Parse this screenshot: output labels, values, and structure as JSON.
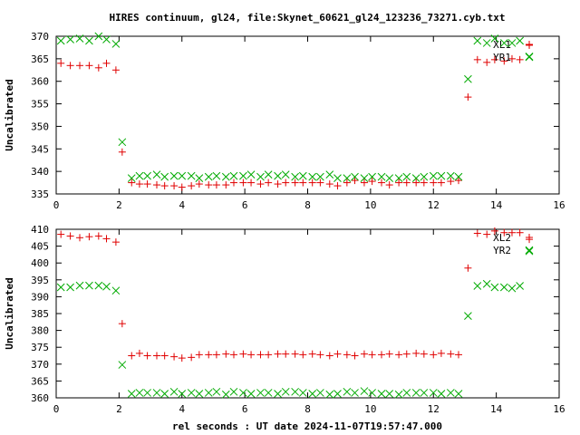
{
  "window": {
    "title": "HIRES continuum, gl24, file:Skynet_60621_gl24_123236_73271.cyb.txt"
  },
  "colors": {
    "red": "#e00000",
    "green": "#00aa00",
    "axis": "#000000"
  },
  "chart_data": [
    {
      "type": "scatter",
      "title": "HIRES continuum, gl24, file:Skynet_60621_gl24_123236_73271.cyb.txt",
      "xlabel": "",
      "ylabel": "Uncalibrated",
      "xlim": [
        0,
        16
      ],
      "ylim": [
        335,
        370
      ],
      "xticks": [
        0,
        2,
        4,
        6,
        8,
        10,
        12,
        14,
        16
      ],
      "yticks": [
        335,
        340,
        345,
        350,
        355,
        360,
        365,
        370
      ],
      "legend_position": "top-right",
      "series": [
        {
          "name": "XL1",
          "marker": "plus",
          "color": "#e00000",
          "x": [
            0.15,
            0.45,
            0.75,
            1.05,
            1.35,
            1.6,
            1.9,
            2.1,
            2.4,
            2.65,
            2.9,
            3.2,
            3.45,
            3.75,
            4.0,
            4.3,
            4.55,
            4.85,
            5.1,
            5.4,
            5.65,
            5.95,
            6.2,
            6.5,
            6.75,
            7.05,
            7.3,
            7.6,
            7.85,
            8.15,
            8.4,
            8.7,
            8.95,
            9.25,
            9.5,
            9.8,
            10.05,
            10.35,
            10.6,
            10.9,
            11.15,
            11.45,
            11.7,
            12.0,
            12.25,
            12.55,
            12.8,
            13.1,
            13.4,
            13.7,
            13.95,
            14.25,
            14.5,
            14.75,
            15.05
          ],
          "y": [
            364.0,
            363.5,
            363.5,
            363.5,
            363.0,
            364.0,
            362.5,
            344.3,
            337.5,
            337.2,
            337.2,
            337.0,
            336.8,
            336.8,
            336.5,
            336.8,
            337.2,
            337.0,
            337.0,
            337.0,
            337.5,
            337.5,
            337.5,
            337.2,
            337.5,
            337.2,
            337.5,
            337.5,
            337.5,
            337.5,
            337.5,
            337.2,
            336.8,
            337.5,
            338.0,
            337.5,
            337.8,
            337.5,
            337.0,
            337.5,
            337.5,
            337.5,
            337.5,
            337.5,
            337.5,
            337.8,
            338.0,
            356.5,
            364.8,
            364.2,
            364.8,
            364.5,
            365.0,
            364.8,
            368.0
          ]
        },
        {
          "name": "YR1",
          "marker": "cross",
          "color": "#00aa00",
          "x": [
            0.15,
            0.45,
            0.75,
            1.05,
            1.35,
            1.6,
            1.9,
            2.1,
            2.4,
            2.65,
            2.9,
            3.2,
            3.45,
            3.75,
            4.0,
            4.3,
            4.55,
            4.85,
            5.1,
            5.4,
            5.65,
            5.95,
            6.2,
            6.5,
            6.75,
            7.05,
            7.3,
            7.6,
            7.85,
            8.15,
            8.4,
            8.7,
            8.95,
            9.25,
            9.5,
            9.8,
            10.05,
            10.35,
            10.6,
            10.9,
            11.15,
            11.45,
            11.7,
            12.0,
            12.25,
            12.55,
            12.8,
            13.1,
            13.4,
            13.7,
            13.95,
            14.25,
            14.5,
            14.75,
            15.05
          ],
          "y": [
            369.0,
            369.3,
            369.5,
            369.0,
            370.0,
            369.3,
            368.3,
            346.5,
            338.5,
            339.0,
            339.0,
            339.3,
            338.8,
            339.0,
            339.0,
            339.0,
            338.5,
            338.8,
            339.0,
            338.8,
            339.0,
            339.0,
            339.3,
            338.8,
            339.3,
            339.0,
            339.3,
            338.8,
            339.0,
            338.8,
            338.8,
            339.3,
            338.5,
            338.5,
            338.8,
            338.5,
            338.8,
            338.8,
            338.5,
            338.5,
            338.8,
            338.5,
            338.8,
            339.0,
            339.0,
            339.0,
            338.8,
            360.5,
            369.0,
            368.5,
            369.5,
            368.5,
            368.5,
            369.0,
            365.5
          ]
        }
      ]
    },
    {
      "type": "scatter",
      "title": "",
      "xlabel": "rel seconds : UT date 2024-11-07T19:57:47.000",
      "ylabel": "Uncalibrated",
      "xlim": [
        0,
        16
      ],
      "ylim": [
        360,
        410
      ],
      "xticks": [
        0,
        2,
        4,
        6,
        8,
        10,
        12,
        14,
        16
      ],
      "yticks": [
        360,
        365,
        370,
        375,
        380,
        385,
        390,
        395,
        400,
        405,
        410
      ],
      "legend_position": "top-right",
      "series": [
        {
          "name": "XL2",
          "marker": "plus",
          "color": "#e00000",
          "x": [
            0.15,
            0.45,
            0.75,
            1.05,
            1.35,
            1.6,
            1.9,
            2.1,
            2.4,
            2.65,
            2.9,
            3.2,
            3.45,
            3.75,
            4.0,
            4.3,
            4.55,
            4.85,
            5.1,
            5.4,
            5.65,
            5.95,
            6.2,
            6.5,
            6.75,
            7.05,
            7.3,
            7.6,
            7.85,
            8.15,
            8.4,
            8.7,
            8.95,
            9.25,
            9.5,
            9.8,
            10.05,
            10.35,
            10.6,
            10.9,
            11.15,
            11.45,
            11.7,
            12.0,
            12.25,
            12.55,
            12.8,
            13.1,
            13.4,
            13.7,
            13.95,
            14.25,
            14.5,
            14.75,
            15.05
          ],
          "y": [
            408.5,
            408.0,
            407.5,
            407.8,
            408.0,
            407.2,
            406.2,
            382.0,
            372.5,
            373.2,
            372.5,
            372.5,
            372.5,
            372.2,
            371.8,
            372.0,
            372.8,
            372.8,
            372.8,
            373.0,
            372.8,
            373.0,
            372.8,
            372.8,
            372.8,
            373.0,
            373.0,
            373.0,
            372.8,
            373.0,
            372.8,
            372.5,
            373.0,
            372.8,
            372.5,
            373.0,
            372.8,
            372.8,
            373.0,
            372.8,
            373.0,
            373.2,
            373.0,
            372.8,
            373.2,
            373.0,
            372.8,
            398.5,
            408.8,
            408.5,
            409.5,
            409.0,
            409.0,
            409.0,
            407.0
          ]
        },
        {
          "name": "YR2",
          "marker": "cross",
          "color": "#00aa00",
          "x": [
            0.15,
            0.45,
            0.75,
            1.05,
            1.35,
            1.6,
            1.9,
            2.1,
            2.4,
            2.65,
            2.9,
            3.2,
            3.45,
            3.75,
            4.0,
            4.3,
            4.55,
            4.85,
            5.1,
            5.4,
            5.65,
            5.95,
            6.2,
            6.5,
            6.75,
            7.05,
            7.3,
            7.6,
            7.85,
            8.15,
            8.4,
            8.7,
            8.95,
            9.25,
            9.5,
            9.8,
            10.05,
            10.35,
            10.6,
            10.9,
            11.15,
            11.45,
            11.7,
            12.0,
            12.25,
            12.55,
            12.8,
            13.1,
            13.4,
            13.7,
            13.95,
            14.25,
            14.5,
            14.75,
            15.05
          ],
          "y": [
            392.8,
            392.8,
            393.3,
            393.3,
            393.3,
            393.0,
            391.8,
            369.8,
            361.2,
            361.5,
            361.5,
            361.5,
            361.2,
            361.8,
            361.2,
            361.5,
            361.2,
            361.5,
            361.8,
            361.0,
            361.8,
            361.5,
            361.2,
            361.5,
            361.5,
            361.2,
            361.8,
            361.8,
            361.5,
            361.2,
            361.5,
            361.0,
            361.2,
            361.8,
            361.5,
            362.0,
            361.5,
            361.2,
            361.2,
            361.0,
            361.5,
            361.5,
            361.5,
            361.5,
            361.2,
            361.5,
            361.2,
            384.3,
            393.2,
            393.8,
            392.8,
            392.8,
            392.5,
            393.2,
            403.5
          ]
        }
      ]
    }
  ]
}
